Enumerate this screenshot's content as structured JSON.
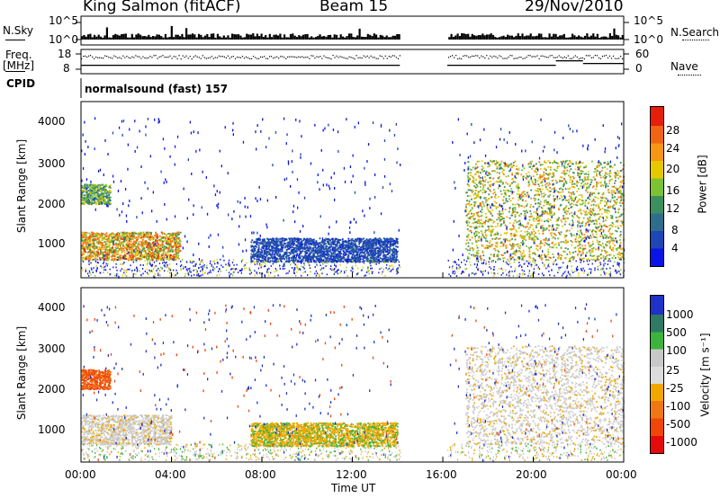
{
  "header": {
    "station": "King Salmon (fitACF)",
    "beam": "Beam 15",
    "date": "29/Nov/2010"
  },
  "top_panels": {
    "nsky_label": "N.Sky",
    "nsky_ticks": [
      "10^5",
      "10^0"
    ],
    "nsearch_label": "N.Search",
    "nsearch_ticks": [
      "10^5",
      "10^0"
    ],
    "freq_label": "Freq.",
    "freq_unit": "[MHz]",
    "freq_ticks": [
      "18",
      "8"
    ],
    "nave_label": "Nave",
    "nave_ticks": [
      "60",
      "0"
    ],
    "cpid_label": "CPID",
    "cpid_text": "normalsound (fast) 157"
  },
  "power_panel": {
    "ylabel": "Slant Range [km]",
    "yticks": [
      "4000",
      "3000",
      "2000",
      "1000"
    ],
    "colorbar_label": "Power [dB]",
    "colorbar_ticks": [
      "28",
      "24",
      "20",
      "16",
      "12",
      "8",
      "4"
    ]
  },
  "velocity_panel": {
    "ylabel": "Slant Range [km]",
    "yticks": [
      "4000",
      "3000",
      "2000",
      "1000"
    ],
    "colorbar_label": "Velocity [m s⁻¹]",
    "colorbar_ticks": [
      "1000",
      "500",
      "100",
      "25",
      "-25",
      "-100",
      "-500",
      "-1000"
    ]
  },
  "xaxis": {
    "ticks": [
      "00:00",
      "04:00",
      "08:00",
      "12:00",
      "16:00",
      "20:00",
      "00:00"
    ],
    "label": "Time UT"
  },
  "colors": {
    "power_scale": [
      "#0a14e6",
      "#1e46b4",
      "#2e6e8c",
      "#3c9060",
      "#7cc232",
      "#e6c800",
      "#f59614",
      "#f06414",
      "#e61e0a"
    ],
    "velocity_scale": [
      "#1e32c8",
      "#2850a0",
      "#2e7a64",
      "#3cb43c",
      "#c8c8c8",
      "#dcdcdc",
      "#f0a800",
      "#f07814",
      "#f0460a",
      "#e60a0a"
    ]
  },
  "chart_data": [
    {
      "type": "heatmap",
      "panel": "power",
      "x": "time UT (hours)",
      "xlim": [
        0,
        24
      ],
      "ylim": [
        180,
        4600
      ],
      "data_gap": [
        14.1,
        16.2
      ],
      "value_unit": "dB",
      "clim": [
        0,
        32
      ],
      "features": [
        {
          "name": "E-region band",
          "t": [
            0.0,
            4.4
          ],
          "range": [
            600,
            1300
          ],
          "peak_power": 30
        },
        {
          "name": "upper band early",
          "t": [
            0.0,
            1.3
          ],
          "range": [
            2000,
            2500
          ],
          "peak_power": 20
        },
        {
          "name": "trail 08-14h",
          "t": [
            7.5,
            14.0
          ],
          "range": [
            550,
            1150
          ],
          "peak_power": 8
        },
        {
          "name": "late arcs",
          "t": [
            17.0,
            24.0
          ],
          "range": [
            600,
            3100
          ],
          "peak_power": 26
        }
      ]
    },
    {
      "type": "heatmap",
      "panel": "velocity",
      "x": "time UT (hours)",
      "xlim": [
        0,
        24
      ],
      "ylim": [
        180,
        4600
      ],
      "data_gap": [
        14.1,
        16.2
      ],
      "value_unit": "m/s",
      "clim": [
        -1200,
        1200
      ],
      "features": [
        {
          "name": "ground scatter band",
          "t": [
            0.0,
            4.0
          ],
          "range": [
            600,
            1350
          ],
          "velocity": 0
        },
        {
          "name": "upper band early",
          "t": [
            0.0,
            1.3
          ],
          "range": [
            2000,
            2500
          ],
          "velocity": -500
        },
        {
          "name": "trail 08-14h",
          "t": [
            7.5,
            14.0
          ],
          "range": [
            550,
            1150
          ],
          "velocity": -100
        },
        {
          "name": "late arcs",
          "t": [
            17.0,
            24.0
          ],
          "range": [
            600,
            3100
          ],
          "velocity": 0
        }
      ]
    }
  ]
}
